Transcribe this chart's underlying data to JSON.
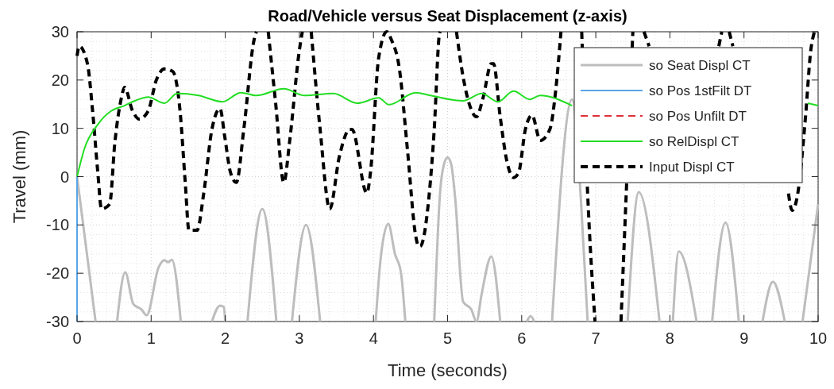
{
  "chart_data": {
    "type": "line",
    "title": "Road/Vehicle versus Seat Displacement (z-axis)",
    "xlabel": "Time (seconds)",
    "ylabel": "Travel (mm)",
    "xlim": [
      0,
      10
    ],
    "ylim": [
      -30,
      30
    ],
    "xticks": [
      0,
      1,
      2,
      3,
      4,
      5,
      6,
      7,
      8,
      9,
      10
    ],
    "yticks": [
      -30,
      -20,
      -10,
      0,
      10,
      20,
      30
    ],
    "grid": true,
    "legend": "top right",
    "series": [
      {
        "name": "so Seat Displ CT",
        "color": "#bdbdbd",
        "line_style": "solid",
        "x": [
          0,
          0.25,
          0.26,
          0.54,
          0.65,
          0.76,
          0.87,
          0.94,
          1.1,
          1.18,
          1.23,
          1.28,
          1.4,
          1.41,
          1.82,
          1.93,
          1.98,
          2.0,
          2.01,
          2.3,
          2.5,
          2.69,
          2.7,
          2.9,
          3.09,
          3.28,
          3.29,
          4.03,
          4.1,
          4.2,
          4.29,
          4.37,
          4.43,
          4.44,
          4.82,
          4.9,
          4.95,
          5.0,
          5.05,
          5.1,
          5.21,
          5.32,
          5.39,
          5.46,
          5.59,
          5.71,
          5.72,
          6.07,
          6.12,
          6.17,
          6.18,
          6.41,
          6.68,
          6.8,
          6.89,
          6.9,
          7.43,
          7.58,
          7.86,
          7.87,
          8.04,
          8.12,
          8.36,
          8.37,
          8.57,
          8.75,
          8.93,
          8.94,
          9.25,
          9.39,
          9.55,
          9.56,
          9.79,
          10
        ],
        "values": [
          0,
          -30,
          null,
          -30,
          -19.8,
          -26.4,
          -27.5,
          -28.7,
          -18.8,
          -17.3,
          -17.7,
          -17.2,
          -30,
          null,
          -30,
          -26.7,
          -27,
          -30,
          null,
          -30,
          -6.7,
          -30,
          null,
          -30,
          -10,
          -30,
          null,
          -30,
          -16.5,
          -9.8,
          -16,
          -19.8,
          -30,
          null,
          -30,
          -3,
          2.5,
          4,
          2.5,
          -4,
          -25.9,
          -27.5,
          -30,
          -24.3,
          -16.5,
          -30,
          null,
          -30,
          -28.9,
          -30,
          null,
          -30,
          16,
          -5,
          -30,
          null,
          -30,
          -3.2,
          -30,
          null,
          -30,
          -15.5,
          -30,
          null,
          -30,
          -9.5,
          -30,
          null,
          -30,
          -21.8,
          -30,
          null,
          -30,
          -5.7
        ]
      },
      {
        "name": "so Pos 1stFilt DT",
        "color": "#5aa5e6",
        "line_style": "solid",
        "x": [
          0,
          0
        ],
        "values": [
          0,
          -30
        ]
      },
      {
        "name": "so Pos Unfilt DT",
        "color": "#e0303a",
        "line_style": "dashed",
        "values": [
          null
        ]
      },
      {
        "name": "so RelDispl CT",
        "color": "#22dd22",
        "line_style": "solid",
        "x": [
          0,
          0.1,
          0.28,
          0.46,
          0.64,
          0.78,
          0.96,
          1.18,
          1.35,
          1.64,
          1.96,
          2.21,
          2.42,
          2.79,
          3.07,
          3.46,
          3.78,
          4.07,
          4.21,
          4.57,
          4.77,
          5.21,
          5.46,
          5.68,
          5.89,
          6.11,
          6.25,
          6.68,
          6.72,
          9.81,
          9.86,
          10
        ],
        "values": [
          0,
          5.8,
          10.8,
          13.6,
          14.7,
          15.7,
          16.5,
          15.2,
          17.2,
          16.8,
          15.5,
          17.4,
          16.8,
          18.2,
          16.8,
          17.2,
          15.2,
          16.3,
          14.9,
          17.4,
          16.8,
          15.7,
          17.2,
          15.5,
          17.7,
          16,
          16.8,
          14.7,
          null,
          null,
          15.2,
          14.7
        ]
      },
      {
        "name": "Input Displ CT",
        "color": "#000000",
        "line_style": "dashed",
        "x": [
          0,
          0.03,
          0.14,
          0.21,
          0.28,
          0.33,
          0.44,
          0.51,
          0.6,
          0.64,
          0.75,
          0.84,
          0.96,
          1.07,
          1.18,
          1.29,
          1.39,
          1.46,
          1.51,
          1.62,
          1.71,
          1.82,
          1.93,
          1.99,
          2.07,
          2.15,
          2.25,
          2.39,
          2.42,
          2.43,
          2.57,
          2.58,
          2.68,
          2.79,
          2.87,
          3.0,
          3.04,
          3.05,
          3.15,
          3.16,
          3.28,
          3.41,
          3.54,
          3.68,
          3.71,
          3.91,
          3.96,
          4.07,
          4.18,
          4.24,
          4.35,
          4.46,
          4.57,
          4.61,
          4.63,
          4.75,
          4.82,
          4.89,
          4.9,
          4.91,
          5.11,
          5.12,
          5.21,
          5.3,
          5.39,
          5.48,
          5.59,
          5.62,
          5.71,
          5.8,
          5.89,
          5.96,
          6.05,
          6.14,
          6.25,
          6.38,
          6.46,
          6.53,
          6.54,
          6.8,
          6.81,
          6.89,
          6.99,
          7.0,
          7.33,
          7.34,
          7.5,
          7.51,
          7.64,
          7.65,
          7.72,
          7.73,
          8.64,
          8.66,
          8.7,
          8.71,
          8.78,
          8.8,
          8.85,
          8.86,
          9.59,
          9.6,
          9.65,
          9.72,
          9.83,
          9.9,
          9.95
        ],
        "values": [
          25,
          27,
          23.4,
          13.6,
          0.9,
          -6.7,
          -5.7,
          7,
          16.4,
          18.5,
          13.6,
          11.9,
          13.6,
          20,
          22.3,
          21.8,
          13.6,
          -1.2,
          -11.1,
          -11.1,
          -3.4,
          9.8,
          14.1,
          8.6,
          0.9,
          -1.2,
          9.8,
          28.4,
          30,
          null,
          null,
          30,
          15.2,
          -1.2,
          7.5,
          26.2,
          30,
          null,
          null,
          30,
          9.8,
          -6.7,
          4.2,
          9.8,
          9.8,
          -3.4,
          0.9,
          24.6,
          30,
          28.4,
          22.3,
          5.3,
          -12.3,
          -14.4,
          -14.4,
          -4,
          9.8,
          29.5,
          30,
          null,
          null,
          30,
          20.6,
          14.7,
          12.4,
          16.4,
          23.4,
          23.4,
          12.4,
          3.2,
          -0.2,
          0.9,
          9.8,
          12.7,
          7.5,
          9.8,
          18,
          30,
          null,
          null,
          30,
          -3.5,
          -30,
          null,
          null,
          -30,
          30,
          null,
          null,
          30,
          27,
          null,
          null,
          27,
          30,
          null,
          null,
          30,
          27,
          null,
          null,
          -3.5,
          -7,
          -4,
          12.4,
          26,
          30
        ]
      }
    ]
  }
}
